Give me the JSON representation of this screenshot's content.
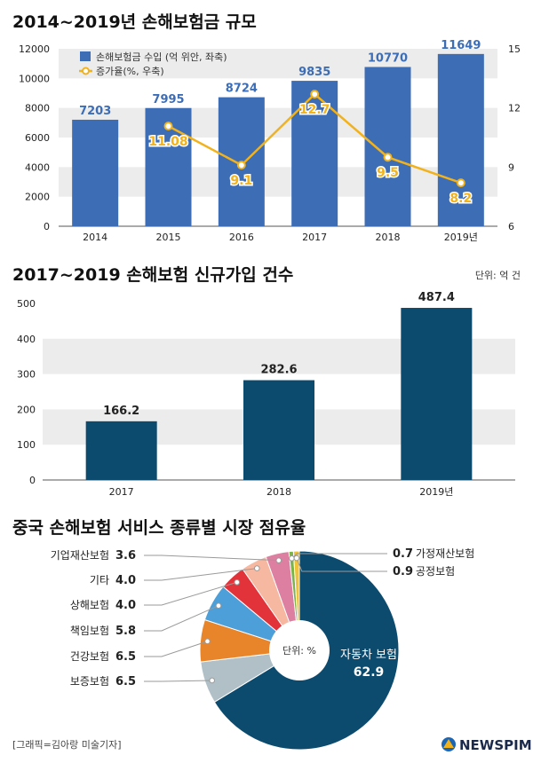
{
  "chart_data": [
    {
      "type": "bar+line",
      "title": "2014~2019년 손해보험금 규모",
      "categories": [
        "2014",
        "2015",
        "2016",
        "2017",
        "2018",
        "2019년"
      ],
      "series": [
        {
          "name": "손해보험금 수입 (억 위안, 좌축)",
          "type": "bar",
          "axis": "left",
          "values": [
            7203,
            7995,
            8724,
            9835,
            10770,
            11649
          ],
          "labels": [
            "7203",
            "7995",
            "8724",
            "9835",
            "10770",
            "11649"
          ]
        },
        {
          "name": "증가율(%, 우축)",
          "type": "line",
          "axis": "right",
          "values": [
            null,
            11.08,
            9.1,
            12.7,
            9.5,
            8.2
          ],
          "labels": [
            "",
            "11.08",
            "9.1",
            "12.7",
            "9.5",
            "8.2"
          ]
        }
      ],
      "left_ylim": [
        0,
        12000
      ],
      "left_ticks": [
        "0",
        "2000",
        "4000",
        "6000",
        "8000",
        "10000",
        "12000"
      ],
      "right_ylim": [
        6,
        15
      ],
      "right_ticks": [
        "6",
        "9",
        "12",
        "15"
      ]
    },
    {
      "type": "bar",
      "title": "2017~2019 손해보험 신규가입 건수",
      "unit": "단위: 억 건",
      "categories": [
        "2017",
        "2018",
        "2019년"
      ],
      "values": [
        166.2,
        282.6,
        487.4
      ],
      "labels": [
        "166.2",
        "282.6",
        "487.4"
      ],
      "ylim": [
        0,
        500
      ],
      "ticks": [
        "0",
        "100",
        "200",
        "300",
        "400",
        "500"
      ]
    },
    {
      "type": "pie",
      "title": "중국 손해보험 서비스 종류별 시장 점유율",
      "center_label": "단위: %",
      "slices": [
        {
          "name": "자동차 보험",
          "value": 62.9,
          "label": "62.9",
          "color": "#0d4b6e"
        },
        {
          "name": "보증보험",
          "value": 6.5,
          "label": "6.5",
          "color": "#b1c0c7"
        },
        {
          "name": "건강보험",
          "value": 6.5,
          "label": "6.5",
          "color": "#e8852b"
        },
        {
          "name": "책임보험",
          "value": 5.8,
          "label": "5.8",
          "color": "#4c9fd8"
        },
        {
          "name": "상해보험",
          "value": 4.0,
          "label": "4.0",
          "color": "#e2333a"
        },
        {
          "name": "기타",
          "value": 4.0,
          "label": "4.0",
          "color": "#f6b8a1"
        },
        {
          "name": "기업재산보험",
          "value": 3.6,
          "label": "3.6",
          "color": "#dd7fa0"
        },
        {
          "name": "가정재산보험",
          "value": 0.7,
          "label": "0.7",
          "color": "#7bb44a"
        },
        {
          "name": "공정보험",
          "value": 0.9,
          "label": "0.9",
          "color": "#efc23a"
        }
      ]
    }
  ],
  "footer": {
    "credit": "[그래픽=김아랑 미술기자]",
    "brand": "NEWSPIM"
  },
  "colors": {
    "bar_blue": "#3d6db5",
    "line_gold": "#f1b21c",
    "bar_teal": "#0d4b6e"
  }
}
